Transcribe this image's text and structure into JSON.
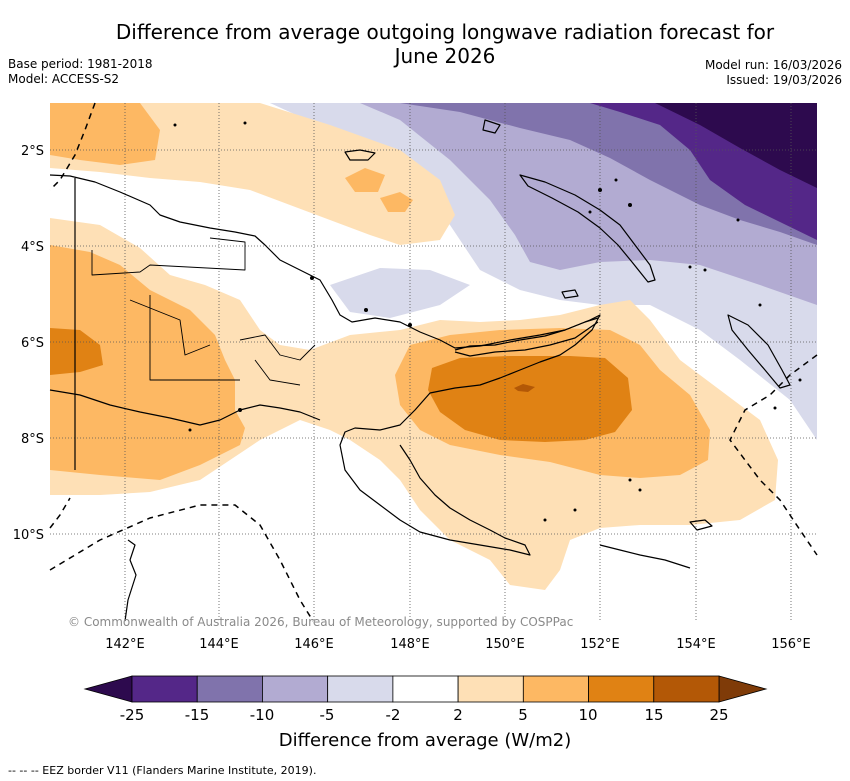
{
  "title": "Difference from average outgoing longwave radiation forecast for June 2026",
  "base_period": "Base period: 1981-2018",
  "model": "Model: ACCESS-S2",
  "model_run": "Model run: 16/03/2026",
  "issued": "Issued: 19/03/2026",
  "copyright": "© Commonwealth of Australia 2026, Bureau of Meteorology, supported by COSPPac",
  "lat_labels": [
    "2°S",
    "4°S",
    "6°S",
    "8°S",
    "10°S"
  ],
  "lon_labels": [
    "142°E",
    "144°E",
    "146°E",
    "148°E",
    "150°E",
    "152°E",
    "154°E",
    "156°E"
  ],
  "colorbar": {
    "title": "Difference from average (W/m2)",
    "ticks": [
      "-25",
      "-15",
      "-10",
      "-5",
      "-2",
      "2",
      "5",
      "10",
      "15",
      "25"
    ],
    "colors": [
      "#2d0a4e",
      "#542788",
      "#8073ac",
      "#b2abd2",
      "#d8daeb",
      "#ffffff",
      "#fee0b6",
      "#fdb863",
      "#e08214",
      "#b35806",
      "#7f3b08"
    ]
  },
  "legend_note": "-- -- -- EEZ border V11 (Flanders Marine Institute, 2019).",
  "colors": {
    "land_line": "#000000",
    "grid": "#555555"
  }
}
